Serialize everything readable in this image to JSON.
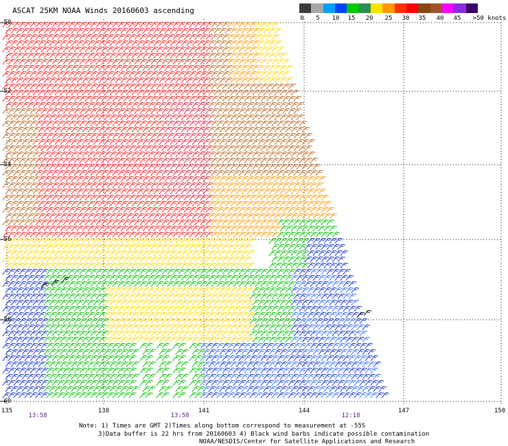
{
  "title": "ASCAT 25KM NOAA Winds 20160603 ascending",
  "legend": {
    "colors": [
      "#3c3c3c",
      "#a8a8a8",
      "#00a0ff",
      "#0044ff",
      "#00c800",
      "#2e8b57",
      "#ffe100",
      "#ff9900",
      "#ff3000",
      "#ff0000",
      "#8b4513",
      "#a0522d",
      "#ff00ff",
      "#8a2be2",
      "#3a006a"
    ],
    "labels": [
      "0",
      "5",
      "10",
      "15",
      "20",
      "25",
      "30",
      "35",
      "40",
      "45",
      ">50 knots"
    ]
  },
  "axes": {
    "lat_labels": [
      "-50",
      "-52",
      "-54",
      "-56",
      "-58",
      "-60"
    ],
    "lon_labels": [
      "135",
      "138",
      "141",
      "144",
      "147",
      "150"
    ]
  },
  "times": [
    "13:58",
    "13:58",
    "12:18"
  ],
  "notes": [
    "Note: 1) Times are GMT 2)Times along bottom correspond to measurement at -55S",
    "3)Data buffer is 22 hrs from 20160603 4) Black wind barbs indicate possible contamination",
    "NOAA/NESDIS/Center for Satellite Applications and Research"
  ],
  "barb_colors": {
    "red": "#ff2020",
    "crimson": "#e0203c",
    "orange": "#ff9900",
    "brown": "#b5651d",
    "yellow": "#ffd800",
    "green": "#00c000",
    "blue": "#1030d0",
    "lightblue": "#3070ff",
    "black": "#000000"
  }
}
